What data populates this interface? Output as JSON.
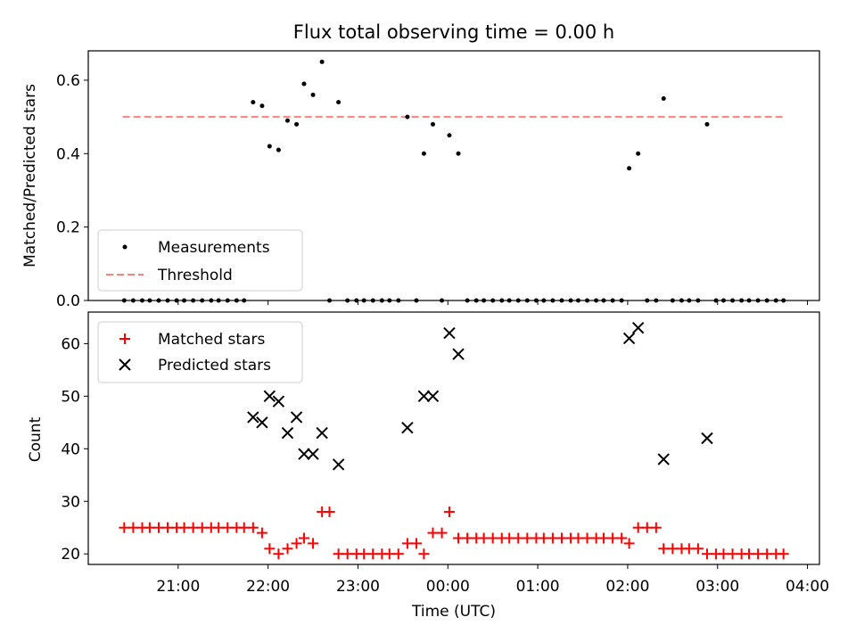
{
  "chart_data": [
    {
      "type": "scatter",
      "title": "Flux total observing time = 0.00 h",
      "xlabel": "",
      "ylabel": "Matched/Predicted stars",
      "ylim": [
        0,
        0.68
      ],
      "yticks": [
        "0.0",
        "0.2",
        "0.4",
        "0.6"
      ],
      "ytick_values": [
        0,
        0.2,
        0.4,
        0.6
      ],
      "xlim": [
        "20:00",
        "04:08"
      ],
      "legend": {
        "position": "lower-left",
        "entries": [
          "Measurements",
          "Threshold"
        ]
      },
      "threshold": {
        "name": "Threshold",
        "value": 0.5,
        "x_range": [
          "20:23",
          "03:44"
        ],
        "color": "#ff7f7f"
      },
      "series": [
        {
          "name": "Measurements",
          "color": "#000000",
          "points": [
            [
              "20:24",
              0
            ],
            [
              "20:30",
              0
            ],
            [
              "20:36",
              0
            ],
            [
              "20:41",
              0
            ],
            [
              "20:47",
              0
            ],
            [
              "20:53",
              0
            ],
            [
              "20:59",
              0
            ],
            [
              "21:04",
              0
            ],
            [
              "21:10",
              0
            ],
            [
              "21:16",
              0
            ],
            [
              "21:22",
              0
            ],
            [
              "21:27",
              0
            ],
            [
              "21:33",
              0
            ],
            [
              "21:39",
              0
            ],
            [
              "21:44",
              0
            ],
            [
              "21:50",
              0.54
            ],
            [
              "21:56",
              0.53
            ],
            [
              "22:01",
              0.42
            ],
            [
              "22:07",
              0.41
            ],
            [
              "22:13",
              0.49
            ],
            [
              "22:19",
              0.48
            ],
            [
              "22:24",
              0.59
            ],
            [
              "22:30",
              0.56
            ],
            [
              "22:36",
              0.65
            ],
            [
              "22:41",
              0
            ],
            [
              "22:47",
              0.54
            ],
            [
              "22:53",
              0
            ],
            [
              "22:59",
              0
            ],
            [
              "23:04",
              0
            ],
            [
              "23:10",
              0
            ],
            [
              "23:16",
              0
            ],
            [
              "23:21",
              0
            ],
            [
              "23:27",
              0
            ],
            [
              "23:33",
              0.5
            ],
            [
              "23:39",
              0
            ],
            [
              "23:44",
              0.4
            ],
            [
              "23:50",
              0.48
            ],
            [
              "23:56",
              0
            ],
            [
              "00:01",
              0.45
            ],
            [
              "00:07",
              0.4
            ],
            [
              "00:13",
              0
            ],
            [
              "00:19",
              0
            ],
            [
              "00:24",
              0
            ],
            [
              "00:30",
              0
            ],
            [
              "00:36",
              0
            ],
            [
              "00:41",
              0
            ],
            [
              "00:47",
              0
            ],
            [
              "00:53",
              0
            ],
            [
              "00:59",
              0
            ],
            [
              "01:04",
              0
            ],
            [
              "01:10",
              0
            ],
            [
              "01:16",
              0
            ],
            [
              "01:22",
              0
            ],
            [
              "01:27",
              0
            ],
            [
              "01:33",
              0
            ],
            [
              "01:39",
              0
            ],
            [
              "01:44",
              0
            ],
            [
              "01:50",
              0
            ],
            [
              "01:56",
              0
            ],
            [
              "02:01",
              0.36
            ],
            [
              "02:07",
              0.4
            ],
            [
              "02:13",
              0
            ],
            [
              "02:19",
              0
            ],
            [
              "02:24",
              0.55
            ],
            [
              "02:30",
              0
            ],
            [
              "02:36",
              0
            ],
            [
              "02:41",
              0
            ],
            [
              "02:47",
              0
            ],
            [
              "02:53",
              0.48
            ],
            [
              "02:59",
              0
            ],
            [
              "03:04",
              0
            ],
            [
              "03:10",
              0
            ],
            [
              "03:16",
              0
            ],
            [
              "03:21",
              0
            ],
            [
              "03:27",
              0
            ],
            [
              "03:33",
              0
            ],
            [
              "03:39",
              0
            ],
            [
              "03:44",
              0
            ]
          ]
        }
      ]
    },
    {
      "type": "scatter",
      "xlabel": "Time (UTC)",
      "ylabel": "Count",
      "ylim": [
        18,
        66
      ],
      "yticks": [
        "20",
        "30",
        "40",
        "50",
        "60"
      ],
      "ytick_values": [
        20,
        30,
        40,
        50,
        60
      ],
      "xlim": [
        "20:00",
        "04:08"
      ],
      "xticks": [
        "21:00",
        "22:00",
        "23:00",
        "00:00",
        "01:00",
        "02:00",
        "03:00",
        "04:00"
      ],
      "legend": {
        "position": "top-left",
        "entries": [
          "Matched stars",
          "Predicted stars"
        ]
      },
      "series": [
        {
          "name": "Matched stars",
          "marker": "plus",
          "color": "#ff0000",
          "points": [
            [
              "20:24",
              25
            ],
            [
              "20:30",
              25
            ],
            [
              "20:36",
              25
            ],
            [
              "20:41",
              25
            ],
            [
              "20:47",
              25
            ],
            [
              "20:53",
              25
            ],
            [
              "20:59",
              25
            ],
            [
              "21:04",
              25
            ],
            [
              "21:10",
              25
            ],
            [
              "21:16",
              25
            ],
            [
              "21:22",
              25
            ],
            [
              "21:27",
              25
            ],
            [
              "21:33",
              25
            ],
            [
              "21:39",
              25
            ],
            [
              "21:44",
              25
            ],
            [
              "21:50",
              25
            ],
            [
              "21:56",
              24
            ],
            [
              "22:01",
              21
            ],
            [
              "22:07",
              20
            ],
            [
              "22:13",
              21
            ],
            [
              "22:19",
              22
            ],
            [
              "22:24",
              23
            ],
            [
              "22:30",
              22
            ],
            [
              "22:36",
              28
            ],
            [
              "22:41",
              28
            ],
            [
              "22:47",
              20
            ],
            [
              "22:53",
              20
            ],
            [
              "22:59",
              20
            ],
            [
              "23:04",
              20
            ],
            [
              "23:10",
              20
            ],
            [
              "23:16",
              20
            ],
            [
              "23:21",
              20
            ],
            [
              "23:27",
              20
            ],
            [
              "23:33",
              22
            ],
            [
              "23:39",
              22
            ],
            [
              "23:44",
              20
            ],
            [
              "23:50",
              24
            ],
            [
              "23:56",
              24
            ],
            [
              "00:01",
              28
            ],
            [
              "00:07",
              23
            ],
            [
              "00:13",
              23
            ],
            [
              "00:19",
              23
            ],
            [
              "00:24",
              23
            ],
            [
              "00:30",
              23
            ],
            [
              "00:36",
              23
            ],
            [
              "00:41",
              23
            ],
            [
              "00:47",
              23
            ],
            [
              "00:53",
              23
            ],
            [
              "00:59",
              23
            ],
            [
              "01:04",
              23
            ],
            [
              "01:10",
              23
            ],
            [
              "01:16",
              23
            ],
            [
              "01:22",
              23
            ],
            [
              "01:27",
              23
            ],
            [
              "01:33",
              23
            ],
            [
              "01:39",
              23
            ],
            [
              "01:44",
              23
            ],
            [
              "01:50",
              23
            ],
            [
              "01:56",
              23
            ],
            [
              "02:01",
              22
            ],
            [
              "02:07",
              25
            ],
            [
              "02:13",
              25
            ],
            [
              "02:19",
              25
            ],
            [
              "02:24",
              21
            ],
            [
              "02:30",
              21
            ],
            [
              "02:36",
              21
            ],
            [
              "02:41",
              21
            ],
            [
              "02:47",
              21
            ],
            [
              "02:53",
              20
            ],
            [
              "02:59",
              20
            ],
            [
              "03:04",
              20
            ],
            [
              "03:10",
              20
            ],
            [
              "03:16",
              20
            ],
            [
              "03:21",
              20
            ],
            [
              "03:27",
              20
            ],
            [
              "03:33",
              20
            ],
            [
              "03:39",
              20
            ],
            [
              "03:44",
              20
            ]
          ]
        },
        {
          "name": "Predicted stars",
          "marker": "x",
          "color": "#000000",
          "points": [
            [
              "21:50",
              46
            ],
            [
              "21:56",
              45
            ],
            [
              "22:01",
              50
            ],
            [
              "22:07",
              49
            ],
            [
              "22:13",
              43
            ],
            [
              "22:19",
              46
            ],
            [
              "22:24",
              39
            ],
            [
              "22:30",
              39
            ],
            [
              "22:36",
              43
            ],
            [
              "22:47",
              37
            ],
            [
              "23:33",
              44
            ],
            [
              "23:44",
              50
            ],
            [
              "23:50",
              50
            ],
            [
              "00:01",
              62
            ],
            [
              "00:07",
              58
            ],
            [
              "02:01",
              61
            ],
            [
              "02:07",
              63
            ],
            [
              "02:24",
              38
            ],
            [
              "02:53",
              42
            ]
          ]
        }
      ]
    }
  ]
}
